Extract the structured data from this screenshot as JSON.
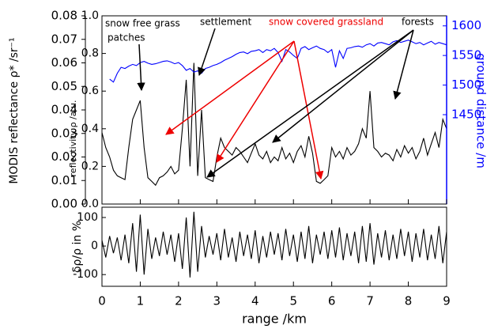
{
  "chart_data": [
    {
      "type": "line",
      "ylabel_left": "MODIS reflectance ρ* /sr⁻¹",
      "ylabel": "reflectivity ρ /a.u.",
      "y2label": "ground distance /m",
      "annotations": [
        "snow free grass",
        "patches",
        "settlement",
        "snow covered grassland",
        "forests"
      ],
      "x": [
        0,
        0.1,
        0.2,
        0.3,
        0.4,
        0.5,
        0.6,
        0.7,
        0.8,
        0.9,
        1,
        1.1,
        1.2,
        1.3,
        1.4,
        1.5,
        1.6,
        1.7,
        1.8,
        1.9,
        2,
        2.1,
        2.2,
        2.3,
        2.4,
        2.5,
        2.6,
        2.7,
        2.8,
        2.9,
        3,
        3.1,
        3.2,
        3.3,
        3.4,
        3.5,
        3.6,
        3.7,
        3.8,
        3.9,
        4,
        4.1,
        4.2,
        4.3,
        4.4,
        4.5,
        4.6,
        4.7,
        4.8,
        4.9,
        5,
        5.1,
        5.2,
        5.3,
        5.4,
        5.5,
        5.6,
        5.7,
        5.8,
        5.9,
        6,
        6.1,
        6.2,
        6.3,
        6.4,
        6.5,
        6.6,
        6.7,
        6.8,
        6.9,
        7,
        7.1,
        7.2,
        7.3,
        7.4,
        7.5,
        7.6,
        7.7,
        7.8,
        7.9,
        8,
        8.1,
        8.2,
        8.3,
        8.4,
        8.5,
        8.6,
        8.7,
        8.8,
        8.9,
        9
      ],
      "series": [
        {
          "color": "#000000",
          "values": [
            0.38,
            0.3,
            0.25,
            0.18,
            0.15,
            0.14,
            0.13,
            0.3,
            0.45,
            0.5,
            0.55,
            0.3,
            0.14,
            0.12,
            0.1,
            0.14,
            0.15,
            0.17,
            0.2,
            0.16,
            0.18,
            0.4,
            0.66,
            0.2,
            0.75,
            0.15,
            0.5,
            0.14,
            0.13,
            0.12,
            0.25,
            0.35,
            0.3,
            0.28,
            0.26,
            0.3,
            0.28,
            0.25,
            0.22,
            0.27,
            0.32,
            0.26,
            0.24,
            0.28,
            0.22,
            0.25,
            0.23,
            0.3,
            0.24,
            0.27,
            0.22,
            0.28,
            0.31,
            0.25,
            0.36,
            0.27,
            0.12,
            0.11,
            0.13,
            0.15,
            0.3,
            0.25,
            0.28,
            0.24,
            0.3,
            0.26,
            0.28,
            0.32,
            0.4,
            0.35,
            0.6,
            0.3,
            0.28,
            0.25,
            0.27,
            0.26,
            0.23,
            0.29,
            0.25,
            0.31,
            0.27,
            0.3,
            0.24,
            0.28,
            0.35,
            0.26,
            0.32,
            0.38,
            0.3,
            0.45,
            0.4
          ]
        },
        {
          "color": "#0000ff",
          "axis": "y2",
          "values": [
            null,
            null,
            1510,
            1505,
            1520,
            1530,
            1528,
            1532,
            1535,
            1533,
            1538,
            1540,
            1537,
            1535,
            1536,
            1538,
            1540,
            1541,
            1539,
            1536,
            1538,
            1533,
            1525,
            1528,
            1522,
            1524,
            1520,
            1528,
            1530,
            1533,
            1535,
            1538,
            1542,
            1545,
            1548,
            1552,
            1555,
            1556,
            1553,
            1557,
            1558,
            1560,
            1555,
            1560,
            1558,
            1562,
            1555,
            1540,
            1560,
            1556,
            1550,
            1545,
            1562,
            1565,
            1560,
            1563,
            1566,
            1562,
            1560,
            1555,
            1560,
            1530,
            1558,
            1545,
            1562,
            1563,
            1565,
            1566,
            1564,
            1568,
            1570,
            1566,
            1571,
            1572,
            1570,
            1568,
            1573,
            1575,
            1572,
            1574,
            1576,
            1573,
            1570,
            1572,
            1568,
            1571,
            1574,
            1569,
            1572,
            1570,
            1568
          ]
        }
      ],
      "xlim": [
        0,
        9
      ],
      "ylim": [
        0,
        1
      ],
      "yticks": [
        {
          "value": 0,
          "label": "0.0"
        },
        0.2,
        0.4,
        0.6,
        0.8,
        {
          "value": 1,
          "label": "1.0"
        }
      ],
      "modis_ylim": [
        0,
        0.08
      ],
      "modis_yticks": [
        {
          "value": 0,
          "label": "0.00"
        },
        0.01,
        0.02,
        0.03,
        0.04,
        0.05,
        0.06,
        0.07,
        0.08
      ],
      "y2lim": [
        1299,
        1617
      ],
      "y2ticks": [
        1450,
        1500,
        1550,
        1600
      ]
    },
    {
      "type": "line",
      "ylabel": "δρ/ρ in %",
      "xlabel": "range /km",
      "x": [
        0,
        0.1,
        0.2,
        0.3,
        0.4,
        0.5,
        0.6,
        0.7,
        0.8,
        0.9,
        1,
        1.1,
        1.2,
        1.3,
        1.4,
        1.5,
        1.6,
        1.7,
        1.8,
        1.9,
        2,
        2.1,
        2.2,
        2.3,
        2.4,
        2.5,
        2.6,
        2.7,
        2.8,
        2.9,
        3,
        3.1,
        3.2,
        3.3,
        3.4,
        3.5,
        3.6,
        3.7,
        3.8,
        3.9,
        4,
        4.1,
        4.2,
        4.3,
        4.4,
        4.5,
        4.6,
        4.7,
        4.8,
        4.9,
        5,
        5.1,
        5.2,
        5.3,
        5.4,
        5.5,
        5.6,
        5.7,
        5.8,
        5.9,
        6,
        6.1,
        6.2,
        6.3,
        6.4,
        6.5,
        6.6,
        6.7,
        6.8,
        6.9,
        7,
        7.1,
        7.2,
        7.3,
        7.4,
        7.5,
        7.6,
        7.7,
        7.8,
        7.9,
        8,
        8.1,
        8.2,
        8.3,
        8.4,
        8.5,
        8.6,
        8.7,
        8.8,
        8.9,
        9
      ],
      "series": [
        {
          "color": "#000000",
          "values": [
            20,
            -40,
            35,
            -25,
            30,
            -50,
            40,
            -60,
            80,
            -90,
            110,
            -100,
            60,
            -45,
            30,
            -35,
            50,
            -30,
            40,
            -55,
            45,
            -80,
            100,
            -110,
            120,
            -90,
            70,
            -40,
            35,
            -30,
            45,
            -50,
            60,
            -40,
            30,
            -55,
            50,
            -35,
            40,
            -45,
            55,
            -60,
            35,
            -40,
            50,
            -30,
            45,
            -50,
            60,
            -35,
            40,
            -55,
            50,
            -45,
            70,
            -60,
            40,
            -30,
            50,
            -45,
            55,
            -40,
            65,
            -50,
            45,
            -35,
            50,
            -60,
            70,
            -55,
            80,
            -65,
            45,
            -40,
            55,
            -50,
            40,
            -45,
            60,
            -35,
            50,
            -55,
            45,
            -40,
            60,
            -50,
            40,
            -45,
            70,
            -60,
            50
          ]
        }
      ],
      "xlim": [
        0,
        9
      ],
      "xticks": [
        0,
        1,
        2,
        3,
        4,
        5,
        6,
        7,
        8,
        9
      ],
      "ylim": [
        -141,
        136
      ],
      "yticks": [
        -100,
        0,
        100
      ]
    }
  ]
}
